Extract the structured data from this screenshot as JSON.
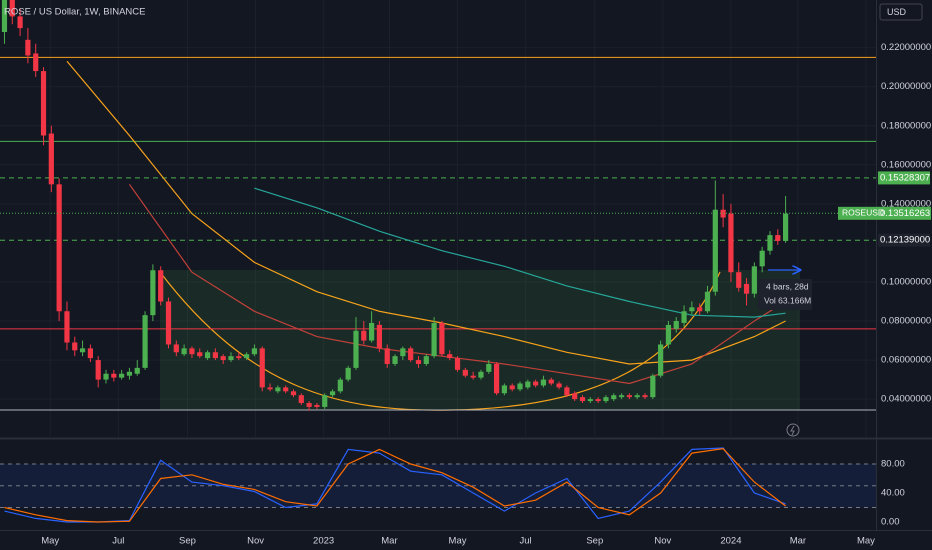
{
  "chart_data": {
    "type": "candlestick",
    "title": "ROSE / US Dollar, 1W, BINANCE",
    "currency": "USD",
    "up_color": "#4caf50",
    "down_color": "#f23645",
    "x": [
      "2022-03-21",
      "2022-03-28",
      "2022-04-04",
      "2022-04-11",
      "2022-04-18",
      "2022-04-25",
      "2022-05-02",
      "2022-05-09",
      "2022-05-16",
      "2022-05-23",
      "2022-05-30",
      "2022-06-06",
      "2022-06-13",
      "2022-06-20",
      "2022-06-27",
      "2022-07-04",
      "2022-07-11",
      "2022-07-18",
      "2022-07-25",
      "2022-08-01",
      "2022-08-08",
      "2022-08-15",
      "2022-08-22",
      "2022-08-29",
      "2022-09-05",
      "2022-09-12",
      "2022-09-19",
      "2022-09-26",
      "2022-10-03",
      "2022-10-10",
      "2022-10-17",
      "2022-10-24",
      "2022-10-31",
      "2022-11-07",
      "2022-11-14",
      "2022-11-21",
      "2022-11-28",
      "2022-12-05",
      "2022-12-12",
      "2022-12-19",
      "2022-12-26",
      "2023-01-02",
      "2023-01-09",
      "2023-01-16",
      "2023-01-23",
      "2023-01-30",
      "2023-02-06",
      "2023-02-13",
      "2023-02-20",
      "2023-02-27",
      "2023-03-06",
      "2023-03-13",
      "2023-03-20",
      "2023-03-27",
      "2023-04-03",
      "2023-04-10",
      "2023-04-17",
      "2023-04-24",
      "2023-05-01",
      "2023-05-08",
      "2023-05-15",
      "2023-05-22",
      "2023-05-29",
      "2023-06-05",
      "2023-06-12",
      "2023-06-19",
      "2023-06-26",
      "2023-07-03",
      "2023-07-10",
      "2023-07-17",
      "2023-07-24",
      "2023-07-31",
      "2023-08-07",
      "2023-08-14",
      "2023-08-21",
      "2023-08-28",
      "2023-09-04",
      "2023-09-11",
      "2023-09-18",
      "2023-09-25",
      "2023-10-02",
      "2023-10-09",
      "2023-10-16",
      "2023-10-23",
      "2023-10-30",
      "2023-11-06",
      "2023-11-13",
      "2023-11-20",
      "2023-11-27",
      "2023-12-04",
      "2023-12-11",
      "2023-12-18",
      "2023-12-25",
      "2024-01-01",
      "2024-01-08",
      "2024-01-15",
      "2024-01-22",
      "2024-01-29",
      "2024-02-05",
      "2024-02-12",
      "2024-02-19"
    ],
    "ohlc": [
      [
        0.228,
        0.252,
        0.222,
        0.245
      ],
      [
        0.245,
        0.25,
        0.232,
        0.236
      ],
      [
        0.236,
        0.24,
        0.226,
        0.23
      ],
      [
        0.224,
        0.23,
        0.212,
        0.216
      ],
      [
        0.217,
        0.222,
        0.205,
        0.208
      ],
      [
        0.208,
        0.21,
        0.17,
        0.175
      ],
      [
        0.176,
        0.18,
        0.146,
        0.15
      ],
      [
        0.15,
        0.153,
        0.08,
        0.085
      ],
      [
        0.085,
        0.09,
        0.065,
        0.069
      ],
      [
        0.069,
        0.072,
        0.062,
        0.065
      ],
      [
        0.064,
        0.07,
        0.062,
        0.066
      ],
      [
        0.066,
        0.068,
        0.059,
        0.061
      ],
      [
        0.06,
        0.062,
        0.046,
        0.05
      ],
      [
        0.05,
        0.055,
        0.048,
        0.053
      ],
      [
        0.053,
        0.055,
        0.049,
        0.051
      ],
      [
        0.051,
        0.055,
        0.05,
        0.053
      ],
      [
        0.052,
        0.056,
        0.05,
        0.054
      ],
      [
        0.053,
        0.06,
        0.052,
        0.056
      ],
      [
        0.056,
        0.085,
        0.055,
        0.083
      ],
      [
        0.083,
        0.109,
        0.08,
        0.106
      ],
      [
        0.106,
        0.108,
        0.088,
        0.09
      ],
      [
        0.09,
        0.092,
        0.066,
        0.068
      ],
      [
        0.068,
        0.07,
        0.062,
        0.064
      ],
      [
        0.063,
        0.068,
        0.062,
        0.066
      ],
      [
        0.066,
        0.067,
        0.061,
        0.063
      ],
      [
        0.064,
        0.066,
        0.061,
        0.062
      ],
      [
        0.061,
        0.065,
        0.06,
        0.064
      ],
      [
        0.064,
        0.066,
        0.06,
        0.061
      ],
      [
        0.062,
        0.063,
        0.058,
        0.06
      ],
      [
        0.06,
        0.064,
        0.059,
        0.062
      ],
      [
        0.062,
        0.064,
        0.06,
        0.061
      ],
      [
        0.061,
        0.064,
        0.06,
        0.063
      ],
      [
        0.063,
        0.068,
        0.062,
        0.066
      ],
      [
        0.066,
        0.067,
        0.044,
        0.046
      ],
      [
        0.046,
        0.048,
        0.044,
        0.045
      ],
      [
        0.044,
        0.047,
        0.043,
        0.046
      ],
      [
        0.046,
        0.047,
        0.043,
        0.044
      ],
      [
        0.044,
        0.045,
        0.041,
        0.042
      ],
      [
        0.042,
        0.043,
        0.037,
        0.038
      ],
      [
        0.038,
        0.039,
        0.034,
        0.036
      ],
      [
        0.037,
        0.038,
        0.035,
        0.036
      ],
      [
        0.036,
        0.043,
        0.035,
        0.042
      ],
      [
        0.042,
        0.045,
        0.041,
        0.044
      ],
      [
        0.044,
        0.051,
        0.043,
        0.05
      ],
      [
        0.05,
        0.057,
        0.049,
        0.056
      ],
      [
        0.056,
        0.082,
        0.055,
        0.075
      ],
      [
        0.075,
        0.08,
        0.068,
        0.07
      ],
      [
        0.07,
        0.085,
        0.069,
        0.079
      ],
      [
        0.078,
        0.08,
        0.064,
        0.066
      ],
      [
        0.066,
        0.068,
        0.056,
        0.058
      ],
      [
        0.058,
        0.063,
        0.057,
        0.062
      ],
      [
        0.062,
        0.067,
        0.06,
        0.066
      ],
      [
        0.066,
        0.067,
        0.059,
        0.06
      ],
      [
        0.06,
        0.062,
        0.056,
        0.058
      ],
      [
        0.058,
        0.063,
        0.057,
        0.062
      ],
      [
        0.062,
        0.082,
        0.061,
        0.079
      ],
      [
        0.079,
        0.08,
        0.062,
        0.063
      ],
      [
        0.063,
        0.065,
        0.06,
        0.061
      ],
      [
        0.061,
        0.062,
        0.054,
        0.055
      ],
      [
        0.055,
        0.056,
        0.051,
        0.052
      ],
      [
        0.052,
        0.054,
        0.05,
        0.051
      ],
      [
        0.051,
        0.055,
        0.05,
        0.054
      ],
      [
        0.054,
        0.06,
        0.053,
        0.058
      ],
      [
        0.058,
        0.059,
        0.042,
        0.043
      ],
      [
        0.043,
        0.048,
        0.042,
        0.047
      ],
      [
        0.047,
        0.048,
        0.044,
        0.045
      ],
      [
        0.045,
        0.049,
        0.044,
        0.048
      ],
      [
        0.046,
        0.05,
        0.045,
        0.049
      ],
      [
        0.049,
        0.05,
        0.046,
        0.047
      ],
      [
        0.047,
        0.052,
        0.046,
        0.05
      ],
      [
        0.05,
        0.051,
        0.047,
        0.048
      ],
      [
        0.048,
        0.049,
        0.045,
        0.046
      ],
      [
        0.046,
        0.047,
        0.041,
        0.042
      ],
      [
        0.043,
        0.044,
        0.039,
        0.04
      ],
      [
        0.041,
        0.042,
        0.038,
        0.039
      ],
      [
        0.039,
        0.041,
        0.038,
        0.04
      ],
      [
        0.04,
        0.041,
        0.038,
        0.039
      ],
      [
        0.039,
        0.042,
        0.038,
        0.041
      ],
      [
        0.04,
        0.043,
        0.039,
        0.042
      ],
      [
        0.041,
        0.043,
        0.04,
        0.042
      ],
      [
        0.042,
        0.043,
        0.04,
        0.041
      ],
      [
        0.041,
        0.043,
        0.04,
        0.042
      ],
      [
        0.042,
        0.043,
        0.04,
        0.041
      ],
      [
        0.041,
        0.053,
        0.04,
        0.052
      ],
      [
        0.052,
        0.07,
        0.051,
        0.068
      ],
      [
        0.068,
        0.08,
        0.066,
        0.078
      ],
      [
        0.076,
        0.082,
        0.074,
        0.08
      ],
      [
        0.079,
        0.088,
        0.077,
        0.085
      ],
      [
        0.085,
        0.09,
        0.083,
        0.087
      ],
      [
        0.087,
        0.089,
        0.083,
        0.085
      ],
      [
        0.085,
        0.098,
        0.084,
        0.095
      ],
      [
        0.095,
        0.152,
        0.093,
        0.137
      ],
      [
        0.137,
        0.145,
        0.128,
        0.133
      ],
      [
        0.135,
        0.14,
        0.1,
        0.105
      ],
      [
        0.105,
        0.11,
        0.095,
        0.097
      ],
      [
        0.099,
        0.102,
        0.088,
        0.094
      ],
      [
        0.094,
        0.11,
        0.092,
        0.108
      ],
      [
        0.108,
        0.118,
        0.105,
        0.116
      ],
      [
        0.116,
        0.126,
        0.114,
        0.124
      ],
      [
        0.124,
        0.127,
        0.119,
        0.121
      ],
      [
        0.121,
        0.144,
        0.12,
        0.135
      ]
    ],
    "xlim": [
      "2022-03-17",
      "2024-05-10"
    ],
    "xticks": [
      {
        "value": "2022-05-01",
        "label": "May"
      },
      {
        "value": "2022-07-01",
        "label": "Jul"
      },
      {
        "value": "2022-09-01",
        "label": "Sep"
      },
      {
        "value": "2022-11-01",
        "label": "Nov"
      },
      {
        "value": "2023-01-01",
        "label": "2023"
      },
      {
        "value": "2023-03-01",
        "label": "Mar"
      },
      {
        "value": "2023-05-01",
        "label": "May"
      },
      {
        "value": "2023-07-01",
        "label": "Jul"
      },
      {
        "value": "2023-09-01",
        "label": "Sep"
      },
      {
        "value": "2023-11-01",
        "label": "Nov"
      },
      {
        "value": "2024-01-01",
        "label": "2024"
      },
      {
        "value": "2024-03-01",
        "label": "Mar"
      },
      {
        "value": "2024-05-01",
        "label": "May"
      }
    ],
    "ylim": [
      0.0206,
      0.2444
    ],
    "yticks": [
      {
        "value": 0.04,
        "label": "0.04000000"
      },
      {
        "value": 0.06,
        "label": "0.06000000"
      },
      {
        "value": 0.08,
        "label": "0.08000000"
      },
      {
        "value": 0.1,
        "label": "0.10000000"
      },
      {
        "value": 0.14,
        "label": "0.14000000"
      },
      {
        "value": 0.16,
        "label": "0.16000000"
      },
      {
        "value": 0.18,
        "label": "0.18000000"
      },
      {
        "value": 0.2,
        "label": "0.20000000"
      },
      {
        "value": 0.22,
        "label": "0.22000000"
      }
    ],
    "grid": true,
    "lines": [
      {
        "color": "#f7a21b",
        "x": [
          "2022-05-16",
          "2022-07-11",
          "2022-09-05",
          "2022-10-31",
          "2022-12-26",
          "2023-02-20",
          "2023-04-17",
          "2023-06-12",
          "2023-08-07",
          "2023-10-02",
          "2023-11-27",
          "2024-01-22",
          "2024-02-19"
        ],
        "values": [
          0.213,
          0.175,
          0.135,
          0.11,
          0.095,
          0.085,
          0.079,
          0.072,
          0.064,
          0.058,
          0.06,
          0.072,
          0.08
        ]
      },
      {
        "color": "#c2413a",
        "x": [
          "2022-05-16",
          "2022-07-11",
          "2022-09-05",
          "2022-10-31",
          "2022-12-26",
          "2023-02-20",
          "2023-04-17",
          "2023-06-12",
          "2023-08-07",
          "2023-10-02",
          "2023-11-27",
          "2024-01-22",
          "2024-02-19"
        ],
        "values": [
          null,
          0.15,
          0.105,
          0.085,
          0.072,
          0.066,
          0.062,
          0.058,
          0.053,
          0.048,
          0.058,
          0.08,
          0.09
        ]
      },
      {
        "color": "#26a69a",
        "x": [
          "2022-05-16",
          "2022-07-11",
          "2022-09-05",
          "2022-10-31",
          "2022-12-26",
          "2023-02-20",
          "2023-04-17",
          "2023-06-12",
          "2023-08-07",
          "2023-10-02",
          "2023-11-27",
          "2024-01-22",
          "2024-02-19"
        ],
        "values": [
          null,
          null,
          null,
          0.148,
          0.138,
          0.126,
          0.116,
          0.108,
          0.098,
          0.09,
          0.083,
          0.082,
          0.084
        ]
      }
    ],
    "levels": [
      {
        "value": 0.215,
        "color": "#f7a21b",
        "dashed": false
      },
      {
        "value": 0.172,
        "color": "#4caf50",
        "dashed": false
      },
      {
        "value": 0.15328307,
        "color": "#4caf50",
        "dashed": true,
        "label_box": "#4caf50"
      },
      {
        "value": 0.12139,
        "label": "0.12139000",
        "color": "#4caf50",
        "dashed": true,
        "label_box": "#1e222d"
      },
      {
        "value": 0.076,
        "color": "#f23645",
        "dashed": false
      },
      {
        "value": 0.0344,
        "color": "#b2b5be",
        "dashed": false
      }
    ],
    "last_price": {
      "name": "ROSEUSD",
      "value": 0.13516263,
      "label": "0.13516263",
      "color": "#4caf50"
    },
    "measure": {
      "bars": "4 bars, 28d",
      "volume": "Vol 63.166M"
    },
    "oscillator": {
      "x": [
        "2022-03-21",
        "2022-04-18",
        "2022-05-16",
        "2022-06-13",
        "2022-07-11",
        "2022-08-08",
        "2022-09-05",
        "2022-10-03",
        "2022-10-31",
        "2022-11-28",
        "2022-12-26",
        "2023-01-23",
        "2023-02-20",
        "2023-03-20",
        "2023-04-17",
        "2023-05-15",
        "2023-06-12",
        "2023-07-10",
        "2023-08-07",
        "2023-09-04",
        "2023-10-02",
        "2023-10-30",
        "2023-11-27",
        "2023-12-25",
        "2024-01-22",
        "2024-02-19"
      ],
      "series": [
        {
          "color": "#2962ff",
          "values": [
            15,
            5,
            0,
            0,
            2,
            85,
            55,
            50,
            42,
            20,
            25,
            100,
            95,
            70,
            65,
            40,
            15,
            40,
            60,
            5,
            15,
            55,
            100,
            102,
            40,
            25
          ]
        },
        {
          "color": "#ff6d00",
          "values": [
            20,
            10,
            2,
            0,
            1,
            60,
            65,
            52,
            45,
            28,
            22,
            80,
            100,
            80,
            68,
            48,
            22,
            30,
            55,
            20,
            10,
            40,
            95,
            101,
            55,
            22
          ]
        }
      ],
      "ylim": [
        -11,
        113
      ],
      "yticks": [
        {
          "value": 0,
          "label": "0.00"
        },
        {
          "value": 40,
          "label": "40.00"
        },
        {
          "value": 80,
          "label": "80.00"
        }
      ],
      "levels": [
        20,
        50,
        80
      ]
    }
  }
}
